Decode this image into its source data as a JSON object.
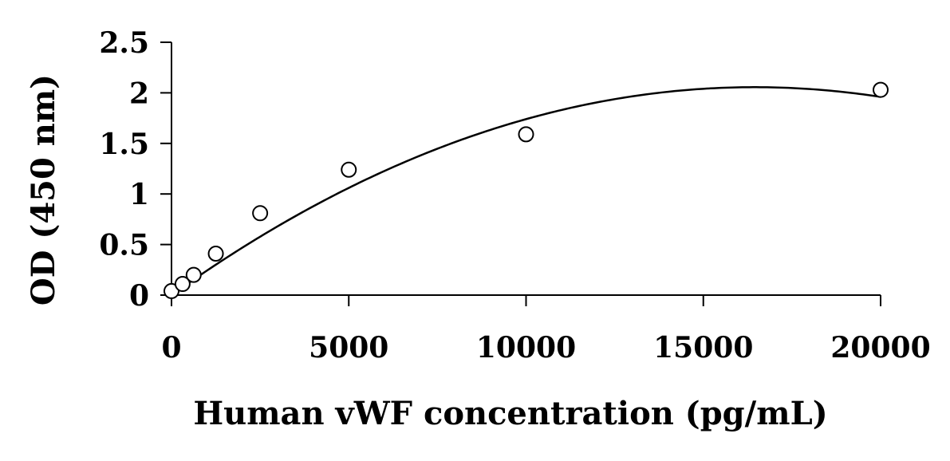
{
  "chart_data": {
    "type": "scatter",
    "title": "",
    "xlabel": "Human vWF concentration (pg/mL)",
    "ylabel": "OD (450 nm)",
    "xlim": [
      0,
      20000
    ],
    "ylim": [
      0,
      2.5
    ],
    "x_ticks": [
      "0",
      "5000",
      "10000",
      "15000",
      "20000"
    ],
    "y_ticks": [
      "0",
      "0.5",
      "1",
      "1.5",
      "2",
      "2.5"
    ],
    "grid": false,
    "legend": "none",
    "series": [
      {
        "marker": "open-circle",
        "points": [
          {
            "x": 0,
            "y": 0.04
          },
          {
            "x": 312.5,
            "y": 0.11
          },
          {
            "x": 625,
            "y": 0.2
          },
          {
            "x": 1250,
            "y": 0.41
          },
          {
            "x": 2500,
            "y": 0.81
          },
          {
            "x": 5000,
            "y": 1.24
          },
          {
            "x": 10000,
            "y": 1.59
          },
          {
            "x": 20000,
            "y": 2.03
          }
        ]
      }
    ],
    "fit_curve": {
      "type": "polynomial",
      "coefficients": [
        0.0,
        0.00025,
        -7.6e-09
      ]
    },
    "colors": {
      "axis": "#000000",
      "marker_stroke": "#000000",
      "marker_fill": "#ffffff",
      "curve": "#000000"
    }
  }
}
